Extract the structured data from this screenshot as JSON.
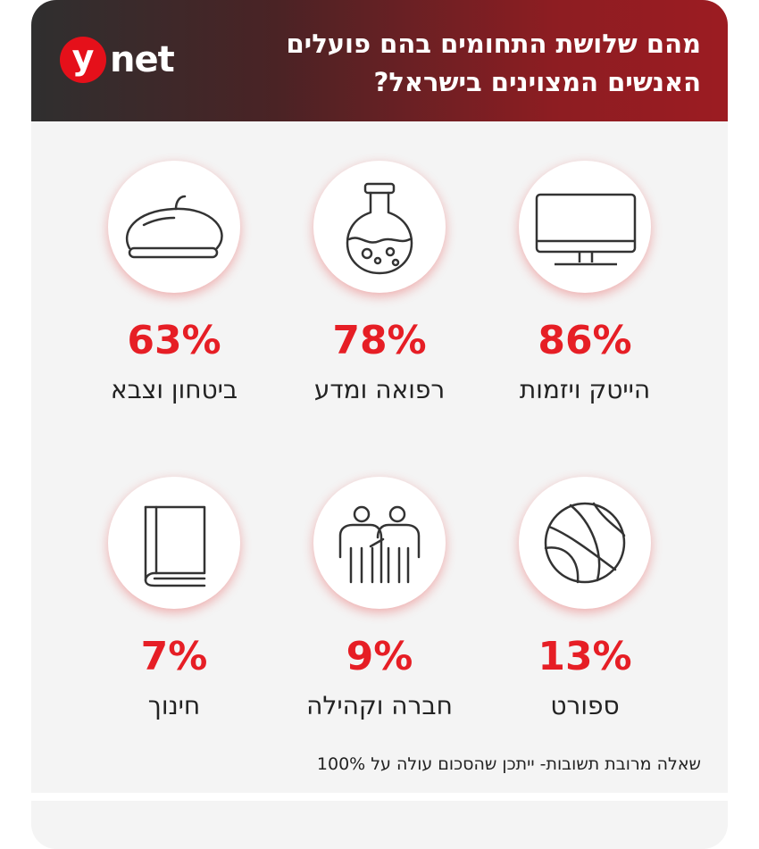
{
  "header": {
    "logo_y": "y",
    "logo_net": "net",
    "title": "מהם שלושת התחומים בהם פועלים האנשים המצוינים בישראל?"
  },
  "footnote": "שאלה מרובת תשובות- ייתכן שהסכום עולה על 100%",
  "colors": {
    "accent": "#e61e25",
    "header_dark": "#2f2f2f",
    "header_red": "#9c1c22"
  },
  "items": [
    {
      "label": "הייטק ויזמות",
      "percent": "86%",
      "icon": "monitor-icon"
    },
    {
      "label": "רפואה ומדע",
      "percent": "78%",
      "icon": "flask-icon"
    },
    {
      "label": "ביטחון וצבא",
      "percent": "63%",
      "icon": "beret-icon"
    },
    {
      "label": "ספורט",
      "percent": "13%",
      "icon": "basketball-icon"
    },
    {
      "label": "חברה וקהילה",
      "percent": "9%",
      "icon": "people-icon"
    },
    {
      "label": "חינוך",
      "percent": "7%",
      "icon": "book-icon"
    }
  ],
  "chart_data": {
    "type": "table",
    "title": "מהם שלושת התחומים בהם פועלים האנשים המצוינים בישראל?",
    "categories": [
      "הייטק ויזמות",
      "רפואה ומדע",
      "ביטחון וצבא",
      "ספורט",
      "חברה וקהילה",
      "חינוך"
    ],
    "values": [
      86,
      78,
      63,
      13,
      9,
      7
    ],
    "unit": "%"
  }
}
